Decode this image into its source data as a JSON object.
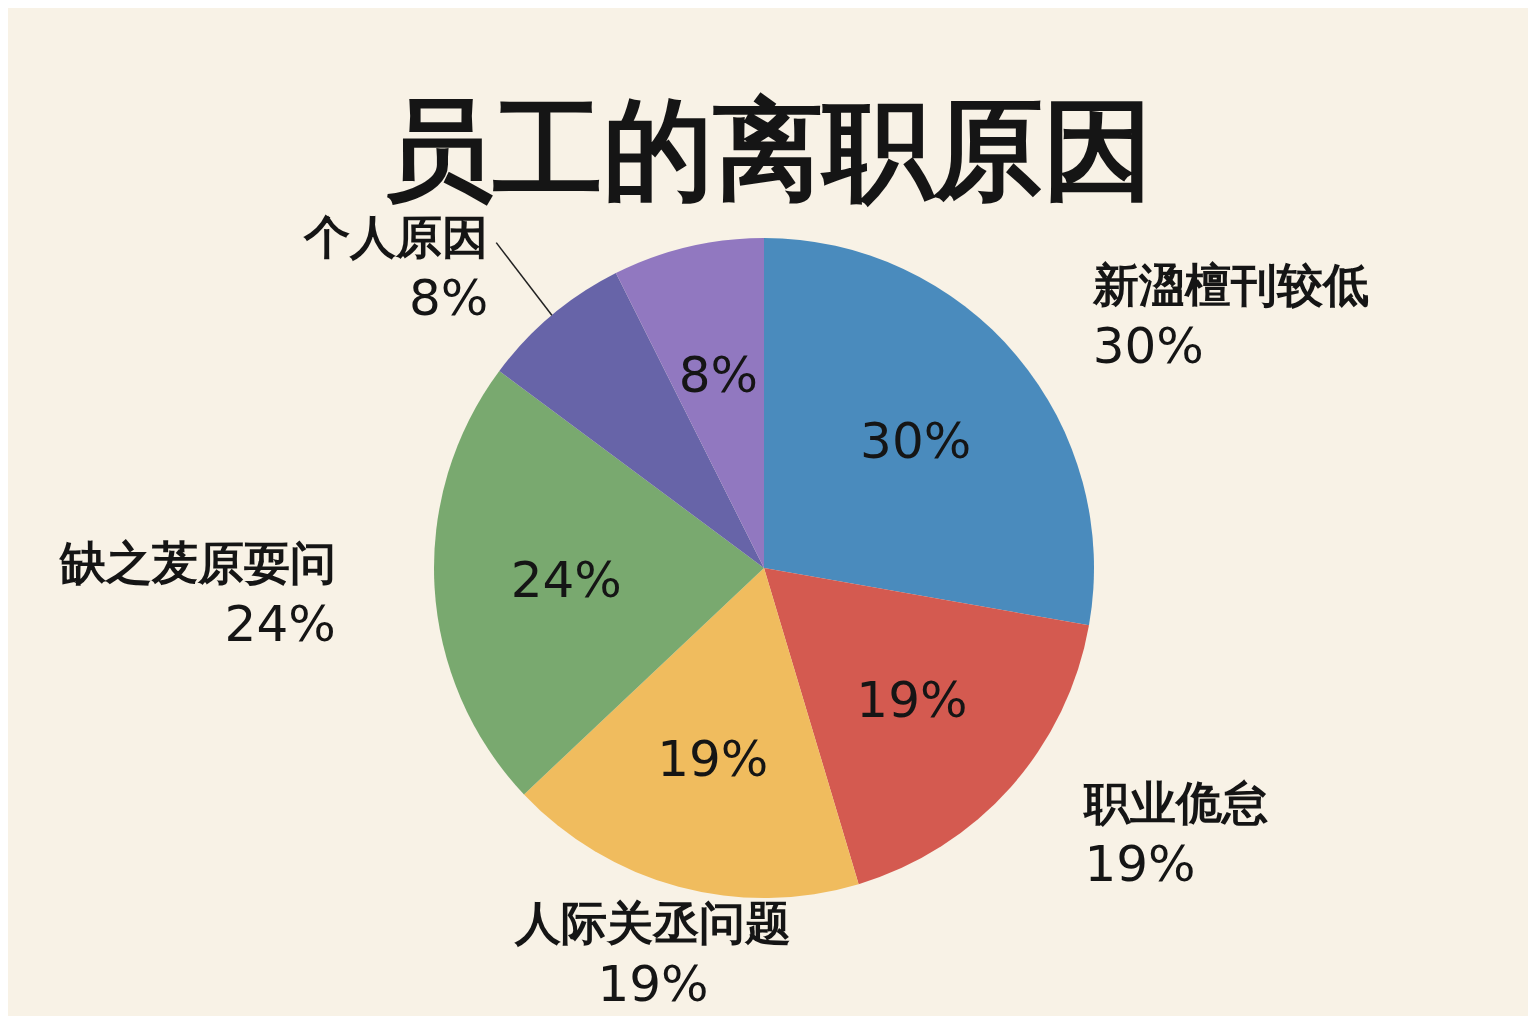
{
  "chart_data": {
    "type": "pie",
    "title": "员工的离职原因",
    "categories": [
      "新溋檀刊较低",
      "职业佹怠",
      "人际关丞问题",
      "缺之茇原耍问",
      "个人原因",
      null
    ],
    "values": [
      30,
      19,
      19,
      24,
      8,
      8
    ],
    "colors": [
      "#4a8bbd",
      "#d45a50",
      "#f0bc5e",
      "#79a96f",
      "#6764a8",
      "#9178c0"
    ],
    "value_labels": [
      "30%",
      "19%",
      "19%",
      "24%",
      null,
      "8%"
    ],
    "annotations": [
      "30%",
      "19%",
      "19%",
      "24%",
      "8%"
    ]
  }
}
